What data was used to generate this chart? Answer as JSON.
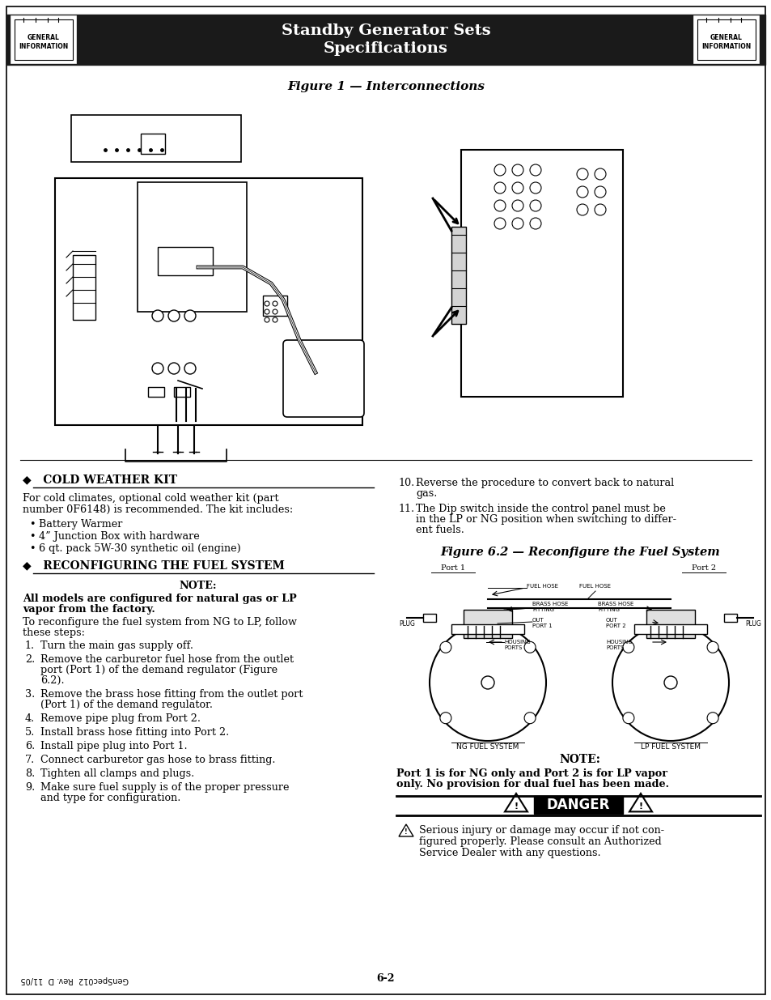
{
  "title_main": "Standby Generator Sets\nSpecifications",
  "header_bg": "#1a1a1a",
  "header_text_color": "#ffffff",
  "general_info_label": "GENERAL\nINFORMATION",
  "fig1_title": "Figure 1 — Interconnections",
  "cold_weather_title": "◆   COLD WEATHER KIT",
  "cold_weather_body_1": "For cold climates, optional cold weather kit (part",
  "cold_weather_body_2": "number 0F6148) is recommended. The kit includes:",
  "cold_weather_bullets": [
    "Battery Warmer",
    "4” Junction Box with hardware",
    "6 qt. pack 5W-30 synthetic oil (engine)"
  ],
  "reconfig_title": "◆   RECONFIGURING THE FUEL SYSTEM",
  "note_label": "NOTE:",
  "note_bold_1": "All models are configured for natural gas or LP",
  "note_bold_2": "vapor from the factory.",
  "reconfig_intro_1": "To reconfigure the fuel system from NG to LP, follow",
  "reconfig_intro_2": "these steps:",
  "steps": [
    "Turn the main gas supply off.",
    "Remove the carburetor fuel hose from the outlet\nport (Port 1) of the demand regulator (Figure\n6.2).",
    "Remove the brass hose fitting from the outlet port\n(Port 1) of the demand regulator.",
    "Remove pipe plug from Port 2.",
    "Install brass hose fitting into Port 2.",
    "Install pipe plug into Port 1.",
    "Connect carburetor gas hose to brass fitting.",
    "Tighten all clamps and plugs.",
    "Make sure fuel supply is of the proper pressure\nand type for configuration."
  ],
  "right_steps": [
    "Reverse the procedure to convert back to natural\ngas.",
    "The Dip switch inside the control panel must be\nin the LP or NG position when switching to differ-\nent fuels."
  ],
  "fig62_title": "Figure 6.2 — Reconfigure the Fuel System",
  "note2_label": "NOTE:",
  "note2_text_1": "Port 1 is for NG only and Port 2 is for LP vapor",
  "note2_text_2": "only. No provision for dual fuel has been made.",
  "danger_label": "DANGER",
  "danger_text_1": "Serious injury or damage may occur if not con-",
  "danger_text_2": "figured properly. Please consult an Authorized",
  "danger_text_3": "Service Dealer with any questions.",
  "footer_left": "GenSpec012  Rev. D  11/05",
  "footer_center": "6-2",
  "bg_color": "#ffffff",
  "text_color": "#000000"
}
